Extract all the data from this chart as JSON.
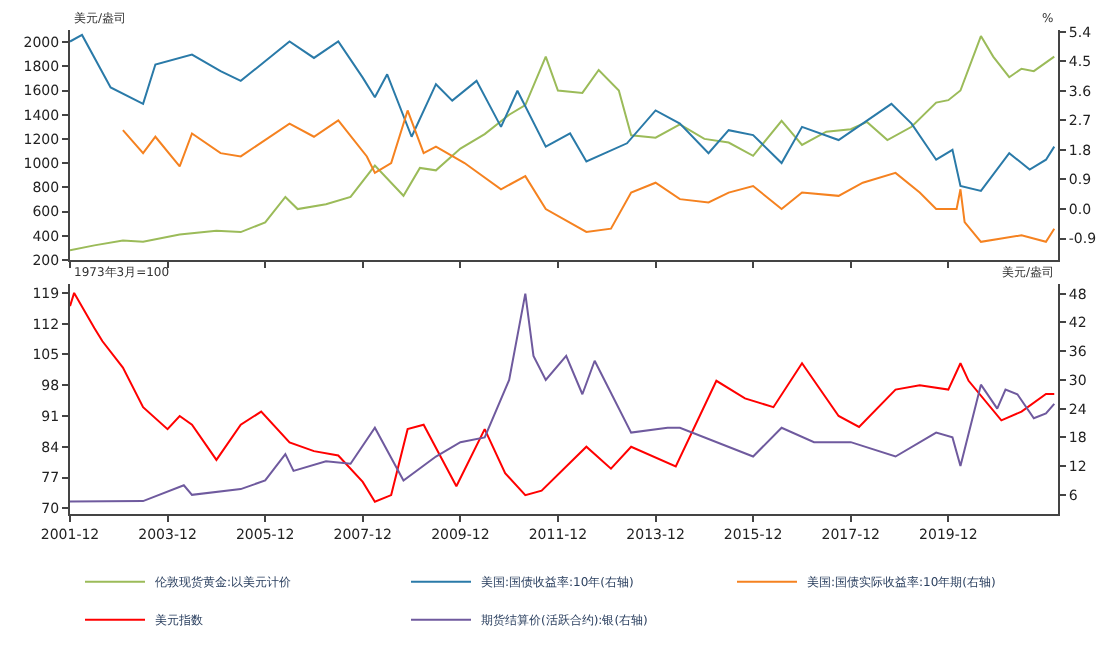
{
  "chart_data": [
    {
      "type": "line",
      "ylabel": "美元/盎司",
      "y2label": "%",
      "xlim": [
        "2001-12-01",
        "2022-03-01"
      ],
      "xticks": [
        "2001-12",
        "2003-12",
        "2005-12",
        "2007-12",
        "2009-12",
        "2011-12",
        "2013-12",
        "2015-12",
        "2017-12",
        "2019-12"
      ],
      "tick_labels": "y",
      "ylim": [
        200,
        2100
      ],
      "yticks": [
        200,
        400,
        600,
        800,
        1000,
        1200,
        1400,
        1600,
        1800,
        2000
      ],
      "y2lim": [
        -1.55,
        5.45
      ],
      "y2ticks": [
        {
          "value": -0.9,
          "label": "-0.9"
        },
        {
          "value": 0,
          "label": "0.0"
        },
        0.9,
        1.8,
        2.7,
        3.6,
        4.5,
        5.4
      ],
      "legend": "bottom",
      "marker": "none",
      "line_style": "solid",
      "series": [
        {
          "name": "伦敦现货黄金:以美元计价",
          "color": "#9bbb59",
          "x": [
            "2001-12",
            "2002-06",
            "2003-01",
            "2003-06",
            "2004-03",
            "2004-12",
            "2005-06",
            "2005-12",
            "2006-05",
            "2006-08",
            "2007-03",
            "2007-09",
            "2008-03",
            "2008-10",
            "2009-02",
            "2009-06",
            "2009-12",
            "2010-06",
            "2010-12",
            "2011-04",
            "2011-09",
            "2011-12",
            "2012-06",
            "2012-10",
            "2013-03",
            "2013-06",
            "2013-12",
            "2014-06",
            "2014-12",
            "2015-06",
            "2015-12",
            "2016-07",
            "2016-12",
            "2017-06",
            "2017-12",
            "2018-04",
            "2018-09",
            "2019-03",
            "2019-09",
            "2019-12",
            "2020-03",
            "2020-08",
            "2020-11",
            "2021-03",
            "2021-06",
            "2021-09",
            "2022-02"
          ],
          "values": [
            280,
            320,
            360,
            350,
            410,
            440,
            430,
            510,
            720,
            620,
            660,
            720,
            980,
            730,
            960,
            940,
            1120,
            1240,
            1400,
            1480,
            1880,
            1600,
            1580,
            1770,
            1600,
            1230,
            1210,
            1320,
            1200,
            1170,
            1060,
            1350,
            1150,
            1260,
            1280,
            1340,
            1190,
            1300,
            1500,
            1520,
            1600,
            2050,
            1880,
            1710,
            1780,
            1760,
            1880
          ]
        },
        {
          "name": "美国:国债收益率:10年(右轴)",
          "color": "#2a7aa8",
          "axis": "y2",
          "x": [
            "2001-12",
            "2002-03",
            "2002-10",
            "2003-06",
            "2003-09",
            "2004-06",
            "2005-01",
            "2005-06",
            "2006-06",
            "2006-12",
            "2007-06",
            "2007-12",
            "2008-03",
            "2008-06",
            "2008-12",
            "2009-06",
            "2009-10",
            "2010-04",
            "2010-10",
            "2011-02",
            "2011-09",
            "2012-03",
            "2012-07",
            "2013-05",
            "2013-12",
            "2014-06",
            "2015-01",
            "2015-06",
            "2015-12",
            "2016-07",
            "2016-12",
            "2017-09",
            "2018-10",
            "2019-03",
            "2019-09",
            "2020-01",
            "2020-03",
            "2020-08",
            "2021-03",
            "2021-08",
            "2021-12",
            "2022-02"
          ],
          "values": [
            5.1,
            5.3,
            3.7,
            3.2,
            4.4,
            4.7,
            4.2,
            3.9,
            5.1,
            4.6,
            5.1,
            4.0,
            3.4,
            4.1,
            2.2,
            3.8,
            3.3,
            3.9,
            2.5,
            3.6,
            1.9,
            2.3,
            1.45,
            2.0,
            3.0,
            2.6,
            1.7,
            2.4,
            2.25,
            1.4,
            2.5,
            2.1,
            3.2,
            2.6,
            1.5,
            1.8,
            0.7,
            0.55,
            1.7,
            1.2,
            1.5,
            1.9
          ]
        },
        {
          "name": "美国:国债实际收益率:10年期(右轴)",
          "color": "#f58220",
          "axis": "y2",
          "x": [
            "2003-01",
            "2003-06",
            "2003-09",
            "2004-03",
            "2004-06",
            "2005-01",
            "2005-06",
            "2006-06",
            "2006-12",
            "2007-06",
            "2008-01",
            "2008-03",
            "2008-07",
            "2008-11",
            "2009-03",
            "2009-06",
            "2010-01",
            "2010-10",
            "2011-04",
            "2011-09",
            "2012-07",
            "2013-01",
            "2013-06",
            "2013-12",
            "2014-06",
            "2015-01",
            "2015-06",
            "2015-12",
            "2016-07",
            "2016-12",
            "2017-09",
            "2018-03",
            "2018-11",
            "2019-05",
            "2019-09",
            "2020-02",
            "2020-03",
            "2020-04",
            "2020-08",
            "2021-01",
            "2021-06",
            "2021-12",
            "2022-02"
          ],
          "values": [
            2.4,
            1.7,
            2.2,
            1.3,
            2.3,
            1.7,
            1.6,
            2.6,
            2.2,
            2.7,
            1.6,
            1.1,
            1.4,
            3.0,
            1.7,
            1.9,
            1.4,
            0.6,
            1.0,
            0.0,
            -0.7,
            -0.6,
            0.5,
            0.8,
            0.3,
            0.2,
            0.5,
            0.7,
            0.0,
            0.5,
            0.4,
            0.8,
            1.1,
            0.5,
            0.0,
            0.0,
            0.6,
            -0.4,
            -1.0,
            -0.9,
            -0.8,
            -1.0,
            -0.6
          ]
        }
      ]
    },
    {
      "type": "line",
      "ylabel": "1973年3月=100",
      "y2label": "美元/盎司",
      "xlim": [
        "2001-12-01",
        "2022-03-01"
      ],
      "xticks": [
        "2001-12",
        "2003-12",
        "2005-12",
        "2007-12",
        "2009-12",
        "2011-12",
        "2013-12",
        "2015-12",
        "2017-12",
        "2019-12"
      ],
      "ylim": [
        68.7,
        121
      ],
      "yticks": [
        70,
        77,
        84,
        91,
        98,
        105,
        112,
        119
      ],
      "y2lim": [
        2,
        50
      ],
      "y2ticks": [
        6,
        12,
        18,
        24,
        30,
        36,
        42,
        48
      ],
      "legend": "bottom",
      "marker": "none",
      "line_style": "solid",
      "series": [
        {
          "name": "美元指数",
          "color": "#ff0000",
          "x": [
            "2001-12",
            "2002-01",
            "2002-06",
            "2002-08",
            "2003-01",
            "2003-06",
            "2003-12",
            "2004-03",
            "2004-06",
            "2004-12",
            "2005-06",
            "2005-11",
            "2006-06",
            "2006-12",
            "2007-06",
            "2007-12",
            "2008-03",
            "2008-07",
            "2008-11",
            "2009-03",
            "2009-11",
            "2010-06",
            "2010-11",
            "2011-04",
            "2011-08",
            "2012-07",
            "2013-01",
            "2013-06",
            "2014-05",
            "2015-03",
            "2015-10",
            "2016-05",
            "2016-12",
            "2017-09",
            "2018-02",
            "2018-11",
            "2019-05",
            "2019-12",
            "2020-03",
            "2020-05",
            "2021-01",
            "2021-06",
            "2021-12",
            "2022-02"
          ],
          "values": [
            116,
            119,
            111,
            108,
            102,
            93,
            88,
            91,
            89,
            81,
            89,
            92,
            85,
            83,
            82,
            76,
            71.5,
            73,
            88,
            89,
            75,
            88,
            78,
            73,
            74,
            84,
            79,
            84,
            79.5,
            99,
            95,
            93,
            103,
            91,
            88.5,
            97,
            98,
            97,
            103,
            99,
            90,
            92,
            96,
            96
          ]
        },
        {
          "name": "期货结算价(活跃合约):银(右轴)",
          "color": "#6f5a9e",
          "axis": "y2",
          "x": [
            "2001-12",
            "2003-06",
            "2004-04",
            "2004-06",
            "2005-06",
            "2005-12",
            "2006-05",
            "2006-07",
            "2007-03",
            "2007-09",
            "2008-03",
            "2008-10",
            "2009-06",
            "2009-12",
            "2010-06",
            "2010-12",
            "2011-04",
            "2011-06",
            "2011-09",
            "2012-02",
            "2012-06",
            "2012-09",
            "2013-06",
            "2014-03",
            "2014-06",
            "2015-12",
            "2016-07",
            "2017-03",
            "2017-12",
            "2018-11",
            "2019-09",
            "2020-01",
            "2020-03",
            "2020-08",
            "2020-12",
            "2021-02",
            "2021-05",
            "2021-09",
            "2021-12",
            "2022-02"
          ],
          "values": [
            4.6,
            4.7,
            8,
            6,
            7.2,
            9,
            14.5,
            11,
            13,
            12.5,
            20,
            9,
            14,
            17,
            18,
            30,
            48,
            35,
            30,
            35,
            27,
            34,
            19,
            20,
            20,
            14,
            20,
            17,
            17,
            14,
            19,
            18,
            12,
            29,
            24,
            28,
            27,
            22,
            23,
            25
          ]
        }
      ]
    }
  ]
}
